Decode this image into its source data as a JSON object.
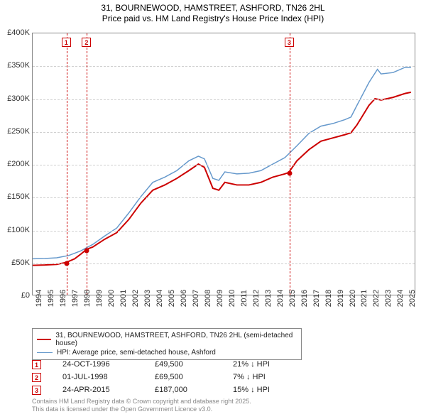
{
  "title": {
    "line1": "31, BOURNEWOOD, HAMSTREET, ASHFORD, TN26 2HL",
    "line2": "Price paid vs. HM Land Registry's House Price Index (HPI)",
    "fontsize": 12,
    "color": "#000000"
  },
  "chart": {
    "type": "line",
    "background_color": "#ffffff",
    "grid_color": "#d0d0d0",
    "border_color": "#888888",
    "x_domain": [
      1994,
      2025.8
    ],
    "y_domain": [
      0,
      400000
    ],
    "y_ticks": [
      0,
      50000,
      100000,
      150000,
      200000,
      250000,
      300000,
      350000,
      400000
    ],
    "y_tick_labels": [
      "£0",
      "£50K",
      "£100K",
      "£150K",
      "£200K",
      "£250K",
      "£300K",
      "£350K",
      "£400K"
    ],
    "x_ticks": [
      1994,
      1995,
      1996,
      1997,
      1998,
      1999,
      2000,
      2001,
      2002,
      2003,
      2004,
      2005,
      2006,
      2007,
      2008,
      2009,
      2010,
      2011,
      2012,
      2013,
      2014,
      2015,
      2016,
      2017,
      2018,
      2019,
      2020,
      2021,
      2022,
      2023,
      2024,
      2025
    ],
    "x_tick_labels": [
      "1994",
      "1995",
      "1996",
      "1997",
      "1998",
      "1999",
      "2000",
      "2001",
      "2002",
      "2003",
      "2004",
      "2005",
      "2006",
      "2007",
      "2008",
      "2009",
      "2010",
      "2011",
      "2012",
      "2013",
      "2014",
      "2015",
      "2016",
      "2017",
      "2018",
      "2019",
      "2020",
      "2021",
      "2022",
      "2023",
      "2024",
      "2025"
    ],
    "series": [
      {
        "name": "property",
        "label": "31, BOURNEWOOD, HAMSTREET, ASHFORD, TN26 2HL (semi-detached house)",
        "color": "#cc0000",
        "width": 2,
        "data": [
          [
            1994.0,
            45000
          ],
          [
            1995.0,
            45500
          ],
          [
            1996.0,
            46500
          ],
          [
            1996.81,
            49500
          ],
          [
            1997.5,
            55000
          ],
          [
            1998.0,
            62000
          ],
          [
            1998.5,
            69500
          ],
          [
            1999.0,
            73000
          ],
          [
            2000.0,
            85000
          ],
          [
            2001.0,
            95000
          ],
          [
            2002.0,
            115000
          ],
          [
            2003.0,
            140000
          ],
          [
            2004.0,
            160000
          ],
          [
            2005.0,
            168000
          ],
          [
            2006.0,
            178000
          ],
          [
            2007.0,
            190000
          ],
          [
            2007.8,
            200000
          ],
          [
            2008.3,
            195000
          ],
          [
            2009.0,
            163000
          ],
          [
            2009.5,
            160000
          ],
          [
            2010.0,
            172000
          ],
          [
            2011.0,
            168000
          ],
          [
            2012.0,
            168000
          ],
          [
            2013.0,
            172000
          ],
          [
            2014.0,
            180000
          ],
          [
            2015.0,
            185000
          ],
          [
            2015.31,
            187000
          ],
          [
            2016.0,
            205000
          ],
          [
            2017.0,
            222000
          ],
          [
            2018.0,
            235000
          ],
          [
            2019.0,
            240000
          ],
          [
            2020.0,
            245000
          ],
          [
            2020.5,
            248000
          ],
          [
            2021.0,
            260000
          ],
          [
            2022.0,
            290000
          ],
          [
            2022.5,
            300000
          ],
          [
            2023.0,
            298000
          ],
          [
            2024.0,
            302000
          ],
          [
            2025.0,
            308000
          ],
          [
            2025.5,
            310000
          ]
        ]
      },
      {
        "name": "hpi",
        "label": "HPI: Average price, semi-detached house, Ashford",
        "color": "#6699cc",
        "width": 1.5,
        "data": [
          [
            1994.0,
            55000
          ],
          [
            1995.0,
            55500
          ],
          [
            1996.0,
            56500
          ],
          [
            1997.0,
            60000
          ],
          [
            1998.0,
            67000
          ],
          [
            1999.0,
            77000
          ],
          [
            2000.0,
            90000
          ],
          [
            2001.0,
            102000
          ],
          [
            2002.0,
            125000
          ],
          [
            2003.0,
            150000
          ],
          [
            2004.0,
            172000
          ],
          [
            2005.0,
            180000
          ],
          [
            2006.0,
            190000
          ],
          [
            2007.0,
            205000
          ],
          [
            2007.8,
            212000
          ],
          [
            2008.3,
            208000
          ],
          [
            2009.0,
            178000
          ],
          [
            2009.5,
            175000
          ],
          [
            2010.0,
            188000
          ],
          [
            2011.0,
            185000
          ],
          [
            2012.0,
            186000
          ],
          [
            2013.0,
            190000
          ],
          [
            2014.0,
            200000
          ],
          [
            2015.0,
            210000
          ],
          [
            2016.0,
            228000
          ],
          [
            2017.0,
            247000
          ],
          [
            2018.0,
            258000
          ],
          [
            2019.0,
            262000
          ],
          [
            2020.0,
            268000
          ],
          [
            2020.5,
            272000
          ],
          [
            2021.0,
            290000
          ],
          [
            2022.0,
            325000
          ],
          [
            2022.7,
            345000
          ],
          [
            2023.0,
            338000
          ],
          [
            2024.0,
            340000
          ],
          [
            2025.0,
            348000
          ],
          [
            2025.5,
            348000
          ]
        ]
      }
    ],
    "markers": [
      {
        "n": "1",
        "x": 1996.81,
        "y": 49500,
        "color": "#cc0000"
      },
      {
        "n": "2",
        "x": 1998.5,
        "y": 69500,
        "color": "#cc0000"
      },
      {
        "n": "3",
        "x": 2015.31,
        "y": 187000,
        "color": "#cc0000"
      }
    ]
  },
  "legend": {
    "border_color": "#888888",
    "fontsize": 10
  },
  "summary": {
    "rows": [
      {
        "n": "1",
        "color": "#cc0000",
        "date": "24-OCT-1996",
        "price": "£49,500",
        "diff": "21% ↓ HPI"
      },
      {
        "n": "2",
        "color": "#cc0000",
        "date": "01-JUL-1998",
        "price": "£69,500",
        "diff": "7% ↓ HPI"
      },
      {
        "n": "3",
        "color": "#cc0000",
        "date": "24-APR-2015",
        "price": "£187,000",
        "diff": "15% ↓ HPI"
      }
    ]
  },
  "footer": {
    "line1": "Contains HM Land Registry data © Crown copyright and database right 2025.",
    "line2": "This data is licensed under the Open Government Licence v3.0.",
    "color": "#888888",
    "fontsize": 9
  }
}
